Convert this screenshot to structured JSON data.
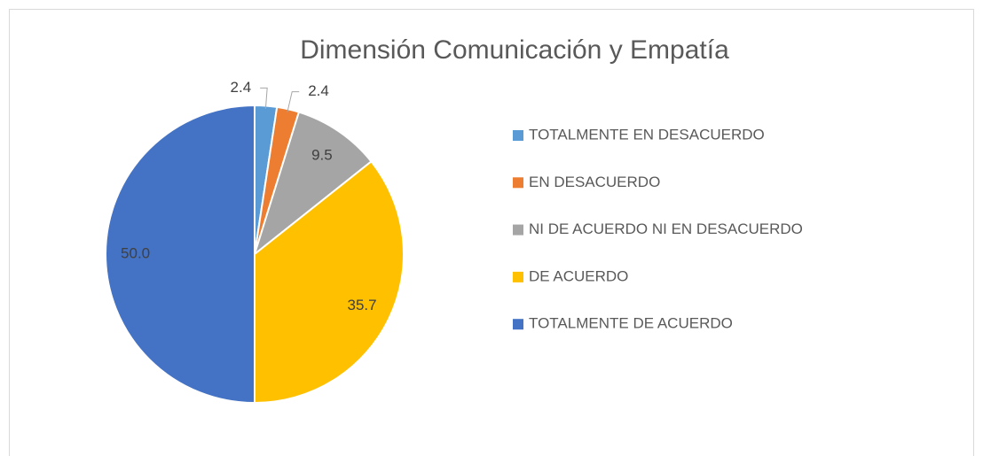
{
  "chart_data": {
    "type": "pie",
    "title": "Dimensión Comunicación y Empatía",
    "categories": [
      "TOTALMENTE EN DESACUERDO",
      "EN DESACUERDO",
      "NI DE ACUERDO NI EN DESACUERDO",
      "DE ACUERDO",
      "TOTALMENTE DE ACUERDO"
    ],
    "values": [
      2.4,
      2.4,
      9.5,
      35.7,
      50.0
    ],
    "value_labels": [
      "2.4",
      "2.4",
      "9.5",
      "35.7",
      "50.0"
    ],
    "colors": [
      "#5b9bd5",
      "#ed7d31",
      "#a5a5a5",
      "#ffc000",
      "#4472c4"
    ],
    "legend": "right"
  }
}
